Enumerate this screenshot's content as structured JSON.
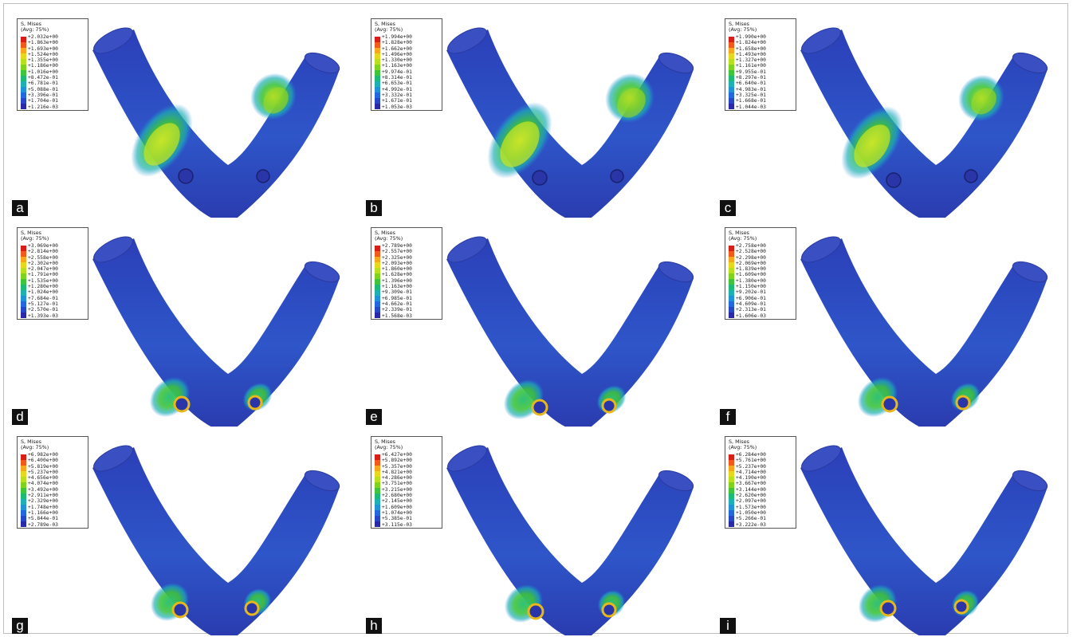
{
  "legend_title": "S, Mises\n(Avg: 75%)",
  "legend_colors": [
    "#d91e18",
    "#f25a1c",
    "#f7a61e",
    "#e6d81e",
    "#b8e01f",
    "#7fd21e",
    "#3fc43a",
    "#1fb977",
    "#1eb0b3",
    "#2192d8",
    "#2468e0",
    "#2847c7",
    "#2a2aa8"
  ],
  "panels": [
    {
      "label": "a",
      "values": [
        "+2.032e+00",
        "+1.863e+00",
        "+1.693e+00",
        "+1.524e+00",
        "+1.355e+00",
        "+1.186e+00",
        "+1.016e+00",
        "+8.472e-01",
        "+6.781e-01",
        "+5.088e-01",
        "+3.396e-01",
        "+1.704e-01",
        "+1.216e-03"
      ]
    },
    {
      "label": "b",
      "values": [
        "+1.994e+00",
        "+1.828e+00",
        "+1.662e+00",
        "+1.496e+00",
        "+1.330e+00",
        "+1.163e+00",
        "+9.974e-01",
        "+8.314e-01",
        "+6.653e-01",
        "+4.992e-01",
        "+3.332e-01",
        "+1.671e-01",
        "+1.053e-03"
      ]
    },
    {
      "label": "c",
      "values": [
        "+1.990e+00",
        "+1.824e+00",
        "+1.658e+00",
        "+1.493e+00",
        "+1.327e+00",
        "+1.161e+00",
        "+9.955e-01",
        "+8.297e-01",
        "+6.640e-01",
        "+4.983e-01",
        "+3.325e-01",
        "+1.668e-01",
        "+1.044e-03"
      ]
    },
    {
      "label": "d",
      "values": [
        "+3.069e+00",
        "+2.814e+00",
        "+2.558e+00",
        "+2.302e+00",
        "+2.047e+00",
        "+1.791e+00",
        "+1.535e+00",
        "+1.280e+00",
        "+1.024e+00",
        "+7.684e-01",
        "+5.127e-01",
        "+2.570e-01",
        "+1.393e-03"
      ]
    },
    {
      "label": "e",
      "values": [
        "+2.789e+00",
        "+2.557e+00",
        "+2.325e+00",
        "+2.093e+00",
        "+1.860e+00",
        "+1.628e+00",
        "+1.396e+00",
        "+1.163e+00",
        "+9.309e-01",
        "+6.985e-01",
        "+4.662e-01",
        "+2.339e-01",
        "+1.568e-03"
      ]
    },
    {
      "label": "f",
      "values": [
        "+2.758e+00",
        "+2.528e+00",
        "+2.298e+00",
        "+2.069e+00",
        "+1.839e+00",
        "+1.609e+00",
        "+1.380e+00",
        "+1.150e+00",
        "+9.202e-01",
        "+6.906e-01",
        "+4.609e-01",
        "+2.313e-01",
        "+1.606e-03"
      ]
    },
    {
      "label": "g",
      "values": [
        "+6.982e+00",
        "+6.400e+00",
        "+5.819e+00",
        "+5.237e+00",
        "+4.656e+00",
        "+4.074e+00",
        "+3.492e+00",
        "+2.911e+00",
        "+2.329e+00",
        "+1.748e+00",
        "+1.166e+00",
        "+5.844e-01",
        "+2.789e-03"
      ]
    },
    {
      "label": "h",
      "values": [
        "+6.427e+00",
        "+5.892e+00",
        "+5.357e+00",
        "+4.821e+00",
        "+4.286e+00",
        "+3.751e+00",
        "+3.215e+00",
        "+2.680e+00",
        "+2.145e+00",
        "+1.609e+00",
        "+1.074e+00",
        "+5.385e-01",
        "+3.115e-03"
      ]
    },
    {
      "label": "i",
      "values": [
        "+6.284e+00",
        "+5.761e+00",
        "+5.237e+00",
        "+4.714e+00",
        "+4.190e+00",
        "+3.667e+00",
        "+3.144e+00",
        "+2.620e+00",
        "+2.097e+00",
        "+1.573e+00",
        "+1.050e+00",
        "+5.266e-01",
        "+3.222e-03"
      ]
    }
  ]
}
